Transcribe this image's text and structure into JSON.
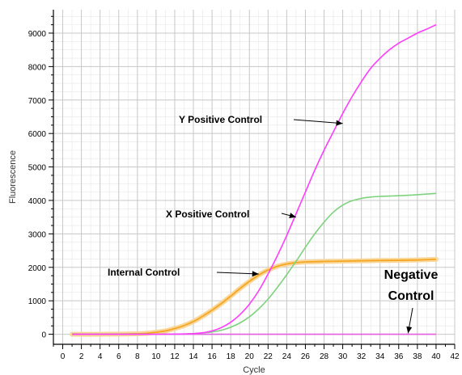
{
  "chart_data": {
    "type": "line",
    "xlabel": "Cycle",
    "ylabel": "Fluorescence",
    "xlim": [
      -1,
      42
    ],
    "ylim": [
      -300,
      9700
    ],
    "x_ticks": [
      0,
      2,
      4,
      6,
      8,
      10,
      12,
      14,
      16,
      18,
      20,
      22,
      24,
      26,
      28,
      30,
      32,
      34,
      36,
      38,
      40,
      42
    ],
    "y_ticks": [
      0,
      1000,
      2000,
      3000,
      4000,
      5000,
      6000,
      7000,
      8000,
      9000
    ],
    "x_minor_step": 1,
    "y_minor_step": 250,
    "grid": true,
    "legend": "none",
    "colors": {
      "y_positive": "#ff3cff",
      "x_positive": "#7ed27e",
      "internal": "#f5a623",
      "internal_halo": "#f9d79a",
      "negative": "#e060e0",
      "grid": "#c8c8c8",
      "axis": "#000000"
    },
    "series": [
      {
        "key": "y_positive",
        "x": [
          1,
          2,
          4,
          6,
          8,
          10,
          12,
          14,
          15,
          16,
          17,
          18,
          19,
          20,
          21,
          22,
          23,
          24,
          25,
          26,
          27,
          28,
          29,
          30,
          31,
          32,
          33,
          34,
          35,
          36,
          37,
          38,
          39,
          40
        ],
        "values": [
          0,
          0,
          0,
          0,
          0,
          0,
          5,
          20,
          45,
          100,
          200,
          360,
          590,
          900,
          1300,
          1800,
          2350,
          2950,
          3600,
          4250,
          4900,
          5500,
          6050,
          6600,
          7100,
          7550,
          7950,
          8250,
          8500,
          8700,
          8850,
          9000,
          9120,
          9250
        ]
      },
      {
        "key": "x_positive",
        "x": [
          1,
          2,
          4,
          6,
          8,
          10,
          12,
          14,
          15,
          16,
          17,
          18,
          19,
          20,
          21,
          22,
          23,
          24,
          25,
          26,
          27,
          28,
          29,
          30,
          31,
          32,
          33,
          34,
          35,
          36,
          38,
          40
        ],
        "values": [
          0,
          0,
          0,
          0,
          0,
          0,
          5,
          20,
          40,
          70,
          120,
          210,
          340,
          520,
          760,
          1050,
          1400,
          1780,
          2180,
          2600,
          3000,
          3350,
          3650,
          3860,
          3990,
          4060,
          4100,
          4120,
          4130,
          4140,
          4170,
          4210
        ],
        "label": "X Positive Control"
      },
      {
        "key": "internal",
        "x": [
          1,
          2,
          4,
          6,
          8,
          9,
          10,
          11,
          12,
          13,
          14,
          15,
          16,
          17,
          18,
          19,
          20,
          21,
          22,
          23,
          24,
          25,
          26,
          28,
          30,
          32,
          34,
          36,
          38,
          40
        ],
        "values": [
          0,
          0,
          0,
          5,
          15,
          30,
          60,
          100,
          170,
          260,
          380,
          540,
          720,
          920,
          1140,
          1370,
          1580,
          1770,
          1920,
          2030,
          2100,
          2140,
          2160,
          2175,
          2185,
          2195,
          2205,
          2210,
          2220,
          2240
        ],
        "label": "Internal Control"
      },
      {
        "key": "negative",
        "x": [
          1,
          40
        ],
        "values": [
          0,
          0
        ],
        "label": "Negative Control"
      }
    ],
    "annotations": [
      {
        "text": "Y Positive Control",
        "arrow_to": [
          30,
          6300
        ]
      },
      {
        "text": "X Positive Control",
        "arrow_to": [
          25,
          3500
        ]
      },
      {
        "text": "Internal Control",
        "arrow_to": [
          21,
          1800
        ]
      },
      {
        "text": "Negative Control",
        "arrow_to": [
          37,
          30
        ]
      }
    ]
  }
}
